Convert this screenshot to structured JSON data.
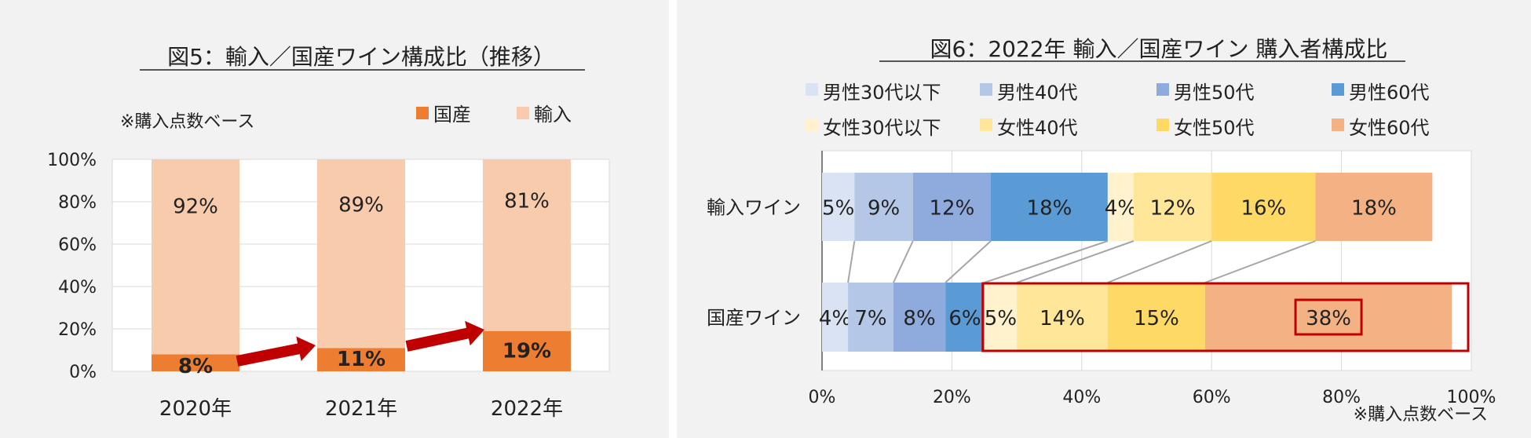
{
  "chart_data": [
    {
      "type": "bar",
      "stacked": true,
      "title": "図5：輸入／国産ワイン構成比（推移）",
      "note": "※購入点数ベース",
      "categories": [
        "2020年",
        "2021年",
        "2022年"
      ],
      "series": [
        {
          "name": "国産",
          "color": "#ed7d31",
          "values": [
            8,
            11,
            19
          ],
          "labels": [
            "8%",
            "11%",
            "19%"
          ]
        },
        {
          "name": "輸入",
          "color": "#f8cbad",
          "values": [
            92,
            89,
            81
          ],
          "labels": [
            "92%",
            "89%",
            "81%"
          ]
        }
      ],
      "y_ticks": [
        "0%",
        "20%",
        "40%",
        "60%",
        "80%",
        "100%"
      ],
      "ylim": [
        0,
        100
      ],
      "legend_position": "top-right",
      "annotation": "red arrows showing rising domestic share"
    },
    {
      "type": "bar",
      "orientation": "horizontal",
      "stacked": true,
      "title": "図6：2022年 輸入／国産ワイン 購入者構成比",
      "note": "※購入点数ベース",
      "categories": [
        "輸入ワイン",
        "国産ワイン"
      ],
      "series": [
        {
          "name": "男性30代以下",
          "color": "#dae3f3",
          "values": [
            5,
            4
          ],
          "labels": [
            "5%",
            "4%"
          ]
        },
        {
          "name": "男性40代",
          "color": "#b4c7e7",
          "values": [
            9,
            7
          ],
          "labels": [
            "9%",
            "7%"
          ]
        },
        {
          "name": "男性50代",
          "color": "#8faadc",
          "values": [
            12,
            8
          ],
          "labels": [
            "12%",
            "8%"
          ]
        },
        {
          "name": "男性60代",
          "color": "#5b9bd5",
          "values": [
            18,
            6
          ],
          "labels": [
            "18%",
            "6%"
          ]
        },
        {
          "name": "女性30代以下",
          "color": "#fff2cc",
          "values": [
            4,
            5
          ],
          "labels": [
            "4%",
            "5%"
          ]
        },
        {
          "name": "女性40代",
          "color": "#ffe699",
          "values": [
            12,
            14
          ],
          "labels": [
            "12%",
            "14%"
          ]
        },
        {
          "name": "女性50代",
          "color": "#ffd966",
          "values": [
            16,
            15
          ],
          "labels": [
            "16%",
            "15%"
          ]
        },
        {
          "name": "女性60代",
          "color": "#f4b183",
          "values": [
            18,
            38
          ],
          "labels": [
            "18%",
            "38%"
          ]
        }
      ],
      "x_ticks": [
        "0%",
        "20%",
        "40%",
        "60%",
        "80%",
        "100%"
      ],
      "xlim": [
        0,
        100
      ],
      "legend_position": "top",
      "annotation": "red box highlighting female segments of 国産ワイン; 38% boxed"
    }
  ]
}
